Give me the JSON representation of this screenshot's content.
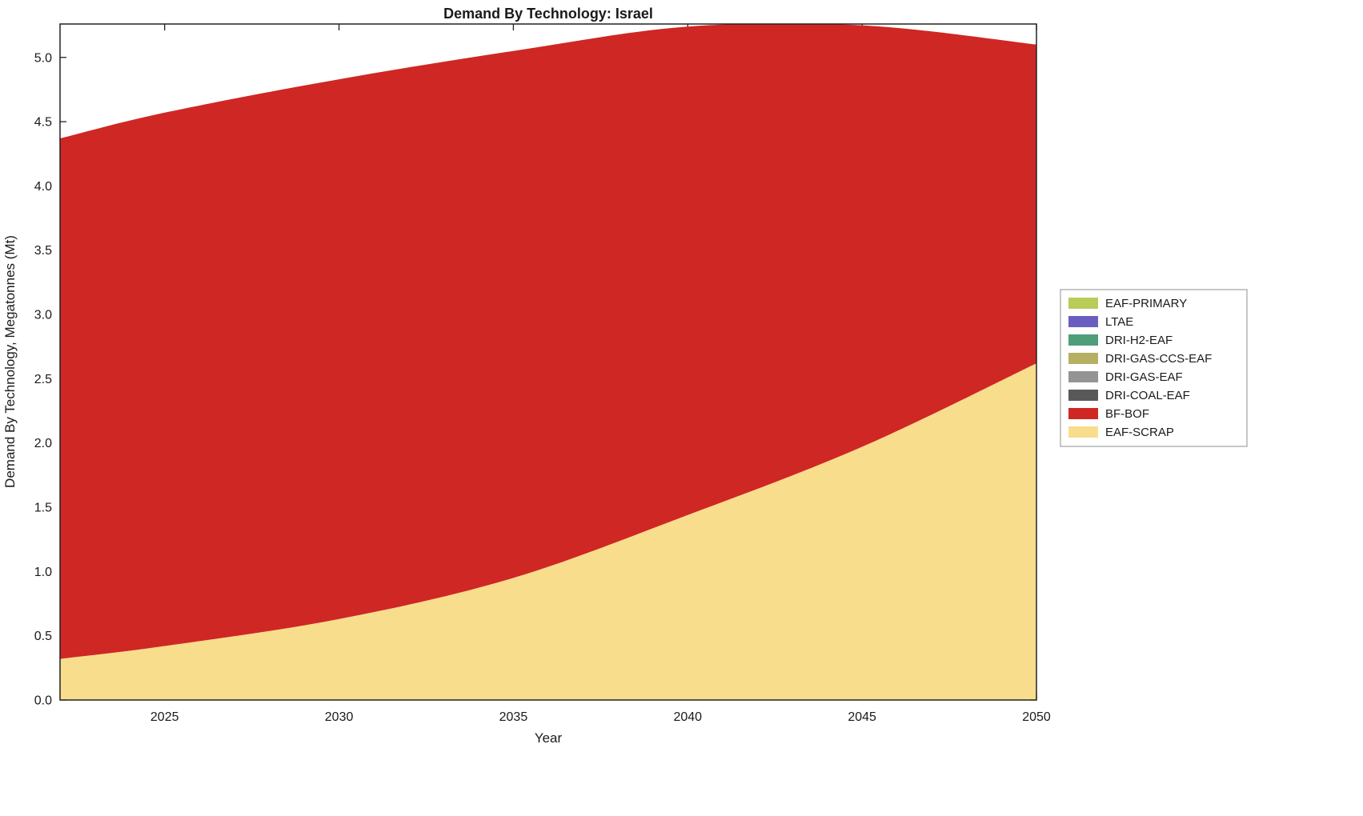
{
  "figure": {
    "title": "Demand By Technology: Israel",
    "xlabel": "Year",
    "ylabel": "Demand By Technology, Megatonnes (Mt)"
  },
  "chart_data": {
    "type": "area",
    "stacked": true,
    "title": "Demand By Technology: Israel",
    "xlabel": "Year",
    "ylabel": "Demand By Technology, Megatonnes (Mt)",
    "x": [
      2022,
      2025,
      2030,
      2035,
      2040,
      2045,
      2050
    ],
    "series": [
      {
        "name": "EAF-SCRAP",
        "color": "#f8dd8c",
        "values": [
          0.32,
          0.42,
          0.63,
          0.95,
          1.44,
          1.97,
          2.62
        ]
      },
      {
        "name": "BF-BOF",
        "color": "#cf2723",
        "values": [
          4.05,
          4.15,
          4.2,
          4.1,
          3.8,
          3.28,
          2.48
        ]
      },
      {
        "name": "DRI-COAL-EAF",
        "color": "#595959",
        "values": [
          0,
          0,
          0,
          0,
          0,
          0,
          0
        ]
      },
      {
        "name": "DRI-GAS-EAF",
        "color": "#949494",
        "values": [
          0,
          0,
          0,
          0,
          0,
          0,
          0
        ]
      },
      {
        "name": "DRI-GAS-CCS-EAF",
        "color": "#b5b063",
        "values": [
          0,
          0,
          0,
          0,
          0,
          0,
          0
        ]
      },
      {
        "name": "DRI-H2-EAF",
        "color": "#4f9e79",
        "values": [
          0,
          0,
          0,
          0,
          0,
          0,
          0
        ]
      },
      {
        "name": "LTAE",
        "color": "#6a5fc1",
        "values": [
          0,
          0,
          0,
          0,
          0,
          0,
          0
        ]
      },
      {
        "name": "EAF-PRIMARY",
        "color": "#b9cb59",
        "values": [
          0,
          0,
          0,
          0,
          0,
          0,
          0
        ]
      }
    ],
    "totals": [
      4.37,
      4.57,
      4.83,
      5.05,
      5.24,
      5.25,
      5.1
    ],
    "xlim": [
      2022,
      2050
    ],
    "ylim": [
      0,
      5.26
    ],
    "xtick_values": [
      2025,
      2030,
      2035,
      2040,
      2045,
      2050
    ],
    "xtick_labels": [
      "2025",
      "2030",
      "2035",
      "2040",
      "2045",
      "2050"
    ],
    "ytick_values": [
      0,
      0.5,
      1,
      1.5,
      2,
      2.5,
      3,
      3.5,
      4,
      4.5,
      5
    ],
    "ytick_labels": [
      "0.0",
      "0.5",
      "1.0",
      "1.5",
      "2.0",
      "2.5",
      "3.0",
      "3.5",
      "4.0",
      "4.5",
      "5.0"
    ],
    "grid": false,
    "legend": {
      "position": "right-outside",
      "order_top_to_bottom": [
        "EAF-PRIMARY",
        "LTAE",
        "DRI-H2-EAF",
        "DRI-GAS-CCS-EAF",
        "DRI-GAS-EAF",
        "DRI-COAL-EAF",
        "BF-BOF",
        "EAF-SCRAP"
      ]
    },
    "colors": {
      "axis": "#222222",
      "text": "#1a1a1a",
      "legend_border": "#8f8f8f",
      "background": "#ffffff"
    }
  }
}
